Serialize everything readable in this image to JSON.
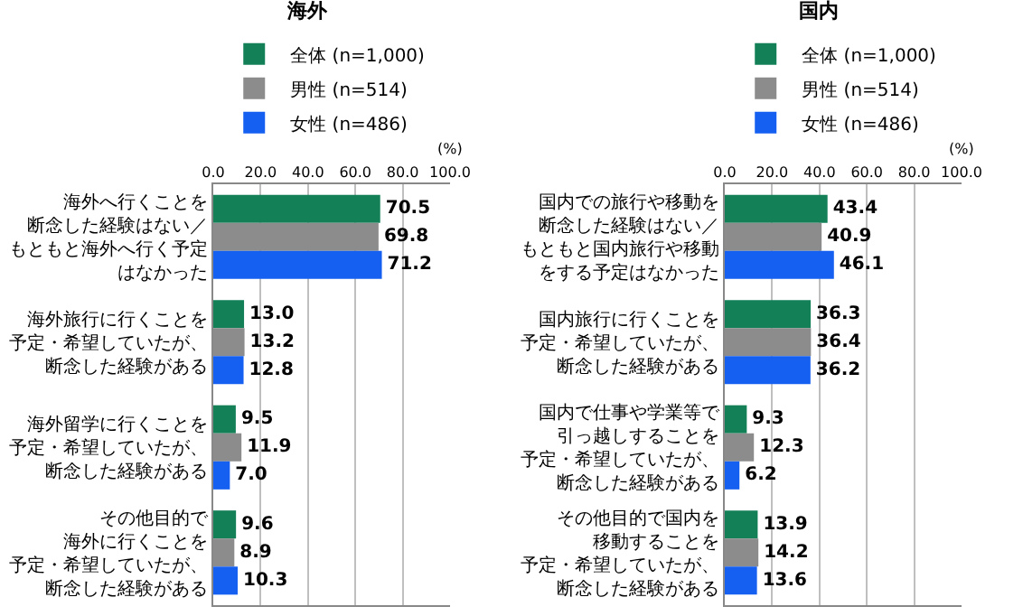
{
  "chart_data": [
    {
      "type": "bar",
      "orientation": "horizontal",
      "title": "海外",
      "categories": [
        "海外へ行くことを断念した経験はない／もともと海外へ行く予定はなかった",
        "海外旅行に行くことを予定・希望していたが、断念した経験がある",
        "海外留学に行くことを予定・希望していたが、断念した経験がある",
        "その他目的で海外に行くことを予定・希望していたが、断念した経験がある"
      ],
      "series": [
        {
          "name": "全体 (n=1,000)",
          "color": "#138058",
          "values": [
            70.5,
            13.0,
            9.5,
            9.6
          ],
          "value_labels": [
            "70.5",
            "13.0",
            "9.5",
            "9.6"
          ]
        },
        {
          "name": "男性 (n=514)",
          "color": "#8c8c8c",
          "values": [
            69.8,
            13.2,
            11.9,
            8.9
          ],
          "value_labels": [
            "69.8",
            "13.2",
            "11.9",
            "8.9"
          ]
        },
        {
          "name": "女性 (n=486)",
          "color": "#1560f0",
          "values": [
            71.2,
            12.8,
            7.0,
            10.3
          ],
          "value_labels": [
            "71.2",
            "12.8",
            "7.0",
            "10.3"
          ]
        }
      ],
      "xlim": [
        0,
        100
      ],
      "xticks": [
        {
          "value": 0,
          "label": "0.0"
        },
        {
          "value": 20,
          "label": "20.0"
        },
        {
          "value": 40,
          "label": "40.0"
        },
        {
          "value": 60,
          "label": "60.0"
        },
        {
          "value": 80,
          "label": "80.0"
        },
        {
          "value": 100,
          "label": "100.0"
        }
      ],
      "annotations": [
        "(%)"
      ],
      "grid": "x",
      "legend": "top"
    },
    {
      "type": "bar",
      "orientation": "horizontal",
      "title": "国内",
      "categories": [
        "国内での旅行や移動を断念した経験はない／もともと国内旅行や移動をする予定はなかった",
        "国内旅行に行くことを予定・希望していたが、断念した経験がある",
        "国内で仕事や学業等で引っ越しすることを予定・希望していたが、断念した経験がある",
        "その他目的で国内を移動することを予定・希望していたが、断念した経験がある"
      ],
      "series": [
        {
          "name": "全体 (n=1,000)",
          "color": "#138058",
          "values": [
            43.4,
            36.3,
            9.3,
            13.9
          ],
          "value_labels": [
            "43.4",
            "36.3",
            "9.3",
            "13.9"
          ]
        },
        {
          "name": "男性 (n=514)",
          "color": "#8c8c8c",
          "values": [
            40.9,
            36.4,
            12.3,
            14.2
          ],
          "value_labels": [
            "40.9",
            "36.4",
            "12.3",
            "14.2"
          ]
        },
        {
          "name": "女性 (n=486)",
          "color": "#1560f0",
          "values": [
            46.1,
            36.2,
            6.2,
            13.6
          ],
          "value_labels": [
            "46.1",
            "36.2",
            "6.2",
            "13.6"
          ]
        }
      ],
      "xlim": [
        0,
        100
      ],
      "xticks": [
        {
          "value": 0,
          "label": "0.0"
        },
        {
          "value": 20,
          "label": "20.0"
        },
        {
          "value": 40,
          "label": "40.0"
        },
        {
          "value": 60,
          "label": "60.0"
        },
        {
          "value": 80,
          "label": "80.0"
        },
        {
          "value": 100,
          "label": "100.0"
        }
      ],
      "annotations": [
        "(%)"
      ],
      "grid": "x",
      "legend": "top"
    }
  ]
}
